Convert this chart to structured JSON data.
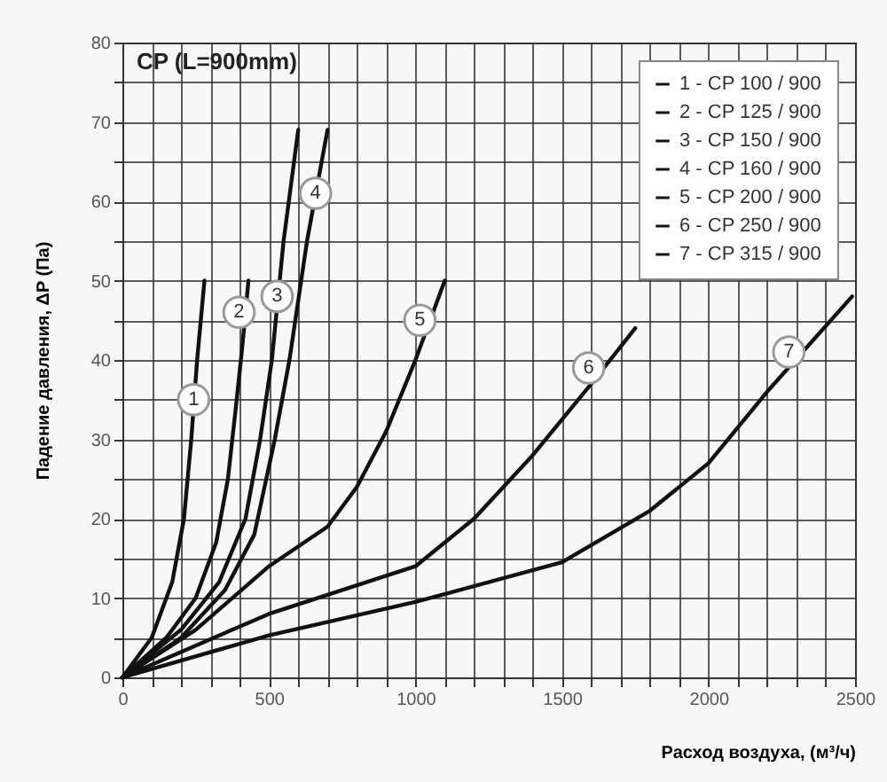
{
  "chart_data": {
    "type": "line",
    "title": "CP (L=900mm)",
    "xlabel": "Расход воздуха, (м³/ч)",
    "ylabel": "Падение давления, ΔP (Па)",
    "series": [
      {
        "name": "1 - CP 100 / 900",
        "color": "#111111",
        "x": [
          0,
          100,
          170,
          210,
          235,
          255,
          280
        ],
        "values": [
          0,
          5,
          12,
          20,
          30,
          40,
          50
        ]
      },
      {
        "name": "2 - CP 125 / 900",
        "color": "#111111",
        "x": [
          0,
          150,
          250,
          320,
          360,
          390,
          410,
          430
        ],
        "values": [
          0,
          5,
          10,
          17,
          25,
          35,
          42,
          50
        ]
      },
      {
        "name": "3 - CP 150 / 900",
        "color": "#111111",
        "x": [
          0,
          200,
          330,
          420,
          470,
          510,
          550,
          600
        ],
        "values": [
          0,
          6,
          12,
          20,
          30,
          40,
          55,
          69
        ]
      },
      {
        "name": "4 - CP 160 / 900",
        "color": "#111111",
        "x": [
          0,
          200,
          350,
          450,
          520,
          570,
          630,
          700
        ],
        "values": [
          0,
          5,
          11,
          18,
          30,
          40,
          55,
          69
        ]
      },
      {
        "name": "5 - CP 200 / 900",
        "color": "#111111",
        "x": [
          0,
          250,
          500,
          700,
          800,
          900,
          1000,
          1100
        ],
        "values": [
          0,
          6,
          14,
          19,
          24,
          31,
          40,
          50
        ]
      },
      {
        "name": "6 - CP 250 / 900",
        "color": "#111111",
        "x": [
          0,
          500,
          1000,
          1200,
          1400,
          1600,
          1750
        ],
        "values": [
          0,
          8,
          14,
          20,
          28,
          37,
          44
        ]
      },
      {
        "name": "7 - CP 315 / 900",
        "color": "#111111",
        "x": [
          0,
          500,
          1000,
          1500,
          1800,
          2000,
          2200,
          2490
        ],
        "values": [
          0,
          5.3,
          9.5,
          14.5,
          21,
          27,
          36,
          48
        ]
      }
    ],
    "annotations": [
      {
        "text": "1",
        "x": 243,
        "y": 35
      },
      {
        "text": "2",
        "x": 398,
        "y": 46
      },
      {
        "text": "3",
        "x": 528,
        "y": 48
      },
      {
        "text": "4",
        "x": 659,
        "y": 61
      },
      {
        "text": "5",
        "x": 1015,
        "y": 45
      },
      {
        "text": "6",
        "x": 1591,
        "y": 39
      },
      {
        "text": "7",
        "x": 2274,
        "y": 41
      }
    ],
    "xlim": [
      0,
      2500
    ],
    "xticks": [
      0,
      {
        "value": 100,
        "label": null
      },
      {
        "value": 200,
        "label": null
      },
      {
        "value": 300,
        "label": null
      },
      {
        "value": 400,
        "label": null
      },
      500,
      {
        "value": 600,
        "label": null
      },
      {
        "value": 700,
        "label": null
      },
      {
        "value": 800,
        "label": null
      },
      {
        "value": 900,
        "label": null
      },
      1000,
      {
        "value": 1100,
        "label": null
      },
      {
        "value": 1200,
        "label": null
      },
      {
        "value": 1300,
        "label": null
      },
      {
        "value": 1400,
        "label": null
      },
      1500,
      {
        "value": 1600,
        "label": null
      },
      {
        "value": 1700,
        "label": null
      },
      {
        "value": 1800,
        "label": null
      },
      {
        "value": 1900,
        "label": null
      },
      2000,
      {
        "value": 2100,
        "label": null
      },
      {
        "value": 2200,
        "label": null
      },
      {
        "value": 2300,
        "label": null
      },
      {
        "value": 2400,
        "label": null
      },
      2500
    ],
    "ylim": [
      0,
      80
    ],
    "yticks": [
      0,
      {
        "value": 5,
        "label": null
      },
      10,
      {
        "value": 15,
        "label": null
      },
      20,
      {
        "value": 25,
        "label": null
      },
      30,
      {
        "value": 35,
        "label": null
      },
      40,
      {
        "value": 45,
        "label": null
      },
      50,
      {
        "value": 55,
        "label": null
      },
      60,
      {
        "value": 65,
        "label": null
      },
      70,
      {
        "value": 75,
        "label": null
      },
      80
    ],
    "grid": true,
    "legend": "top right",
    "marker": "none",
    "line_style": "solid"
  }
}
